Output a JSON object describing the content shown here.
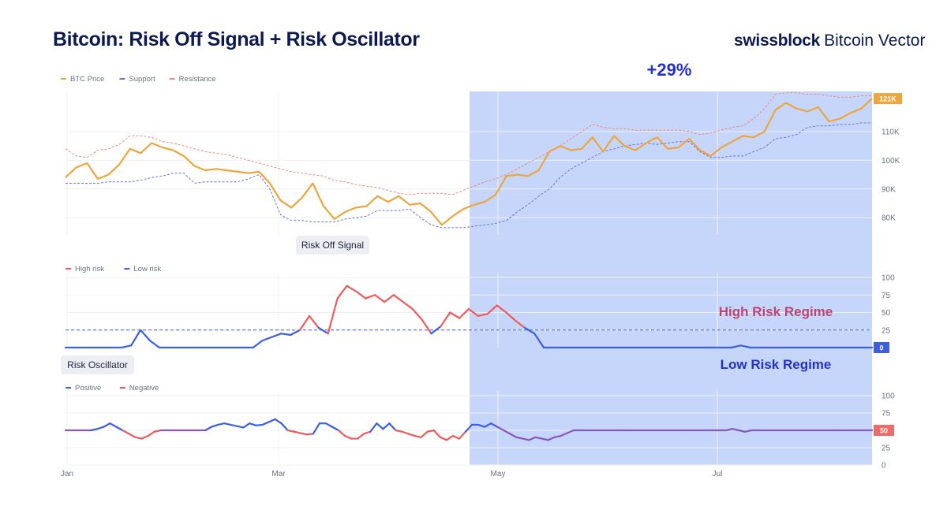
{
  "header": {
    "title": "Bitcoin: Risk Off Signal + Risk Oscillator",
    "brand_bold": "swissblock",
    "brand_light": "Bitcoin Vector"
  },
  "annotations": {
    "gain": "+29%",
    "high_regime": "High Risk Regime",
    "low_regime": "Low Risk Regime"
  },
  "colors": {
    "price": "#eda53d",
    "support": "#6b72e0",
    "resistance": "#f08a80",
    "high_risk": "#ef5a5a",
    "low_risk": "#3b5fe0",
    "highlight": "#c6d6fa",
    "title": "#0d1a4f",
    "high_regime_text": "#c0436f",
    "low_regime_text": "#2431c9"
  },
  "chart_data": [
    {
      "type": "line",
      "title": "",
      "x_axis": {
        "ticks": [
          "Jan",
          "Mar",
          "May",
          "Jul"
        ]
      },
      "y_axis": {
        "ticks": [
          "80K",
          "90K",
          "100K",
          "110K"
        ],
        "ylim": [
          74000,
          124000
        ]
      },
      "last_value_label": "121K",
      "highlight_from": "May",
      "series": [
        {
          "name": "BTC Price",
          "color": "#eda53d",
          "values": [
            94000,
            97500,
            99000,
            93500,
            95000,
            98500,
            104000,
            102500,
            106000,
            104500,
            103500,
            101500,
            98000,
            96500,
            97000,
            96500,
            96000,
            95500,
            96000,
            92000,
            86000,
            83500,
            87000,
            92000,
            84000,
            79500,
            82000,
            83500,
            84000,
            87500,
            85500,
            87500,
            84500,
            85000,
            82000,
            77500,
            80500,
            83000,
            84500,
            85500,
            88000,
            94500,
            95000,
            94500,
            96500,
            103000,
            105000,
            103500,
            104000,
            108000,
            103000,
            108500,
            105000,
            103500,
            106000,
            108000,
            104000,
            104500,
            107500,
            103500,
            101500,
            104500,
            106500,
            108500,
            108000,
            110000,
            117500,
            120000,
            118000,
            117000,
            118500,
            113500,
            114500,
            116500,
            118000,
            121500
          ]
        },
        {
          "name": "Support",
          "color": "#6b72e0",
          "values": [
            92000,
            92000,
            92000,
            92000,
            92500,
            92500,
            92500,
            93000,
            94000,
            94500,
            95500,
            95500,
            92000,
            92500,
            92500,
            92500,
            92500,
            93500,
            95000,
            90000,
            81000,
            79000,
            79000,
            78500,
            78500,
            78500,
            79500,
            80000,
            80500,
            82500,
            82500,
            82500,
            83000,
            80000,
            77500,
            76500,
            76500,
            76500,
            77000,
            77500,
            78000,
            79000,
            82000,
            84500,
            87500,
            90000,
            94000,
            97000,
            99000,
            101000,
            103000,
            104000,
            105000,
            105500,
            106000,
            105500,
            106000,
            106500,
            106500,
            103000,
            101000,
            101000,
            101500,
            101500,
            103000,
            104500,
            107500,
            108000,
            109000,
            111500,
            112000,
            112000,
            112500,
            112500,
            113000,
            113000
          ]
        },
        {
          "name": "Resistance",
          "color": "#f08a80",
          "values": [
            104000,
            101500,
            101000,
            103500,
            104000,
            105500,
            108500,
            108500,
            108000,
            106500,
            106000,
            105000,
            104000,
            103000,
            102500,
            102000,
            101000,
            100000,
            99000,
            98000,
            97000,
            96000,
            95500,
            95000,
            94500,
            93000,
            92500,
            91500,
            91000,
            90500,
            89500,
            88500,
            88000,
            88500,
            88500,
            88500,
            88000,
            89500,
            91000,
            92500,
            93500,
            95000,
            97000,
            99000,
            101000,
            103000,
            105000,
            107500,
            110000,
            112500,
            111500,
            111000,
            111000,
            110500,
            110500,
            110500,
            110500,
            110500,
            110000,
            109000,
            109500,
            110500,
            111500,
            112000,
            114500,
            118000,
            123000,
            123500,
            123500,
            123000,
            123000,
            122500,
            122000,
            122000,
            122500,
            122500
          ]
        }
      ]
    },
    {
      "type": "line",
      "title": "Risk Off Signal",
      "x_axis": {
        "ticks": [
          "Jan",
          "Mar",
          "May",
          "Jul"
        ]
      },
      "y_axis": {
        "ticks": [
          "100",
          "75",
          "50",
          "25"
        ],
        "ylim": [
          0,
          100
        ]
      },
      "threshold": 25,
      "last_value_label": "0",
      "series": [
        {
          "name": "High risk",
          "color": "#ef5a5a",
          "values": []
        },
        {
          "name": "Low risk",
          "color": "#3b5fe0",
          "values": []
        }
      ],
      "values": [
        0,
        0,
        0,
        0,
        0,
        0,
        0,
        3,
        25,
        10,
        0,
        0,
        0,
        0,
        0,
        0,
        0,
        0,
        0,
        0,
        0,
        10,
        15,
        20,
        18,
        25,
        45,
        28,
        20,
        70,
        88,
        80,
        70,
        75,
        65,
        75,
        65,
        55,
        40,
        20,
        30,
        50,
        42,
        55,
        45,
        48,
        60,
        50,
        38,
        28,
        20,
        0,
        0,
        0,
        0,
        0,
        0,
        0,
        0,
        0,
        0,
        0,
        0,
        0,
        0,
        0,
        0,
        0,
        0,
        0,
        0,
        0,
        3,
        0,
        0,
        0,
        0,
        0,
        0,
        0,
        0,
        0,
        0,
        0,
        0,
        0,
        0
      ]
    },
    {
      "type": "line",
      "title": "Risk Oscillator",
      "x_axis": {
        "ticks": [
          "Jan",
          "Mar",
          "May",
          "Jul"
        ]
      },
      "y_axis": {
        "ticks": [
          "100",
          "75",
          "50",
          "25",
          "0"
        ],
        "ylim": [
          0,
          100
        ]
      },
      "midline": 50,
      "last_value_label": "50",
      "series": [
        {
          "name": "Positive",
          "color": "#3b5fe0",
          "values": []
        },
        {
          "name": "Negative",
          "color": "#ef5a5a",
          "values": []
        }
      ],
      "values": [
        50,
        50,
        50,
        50,
        50,
        52,
        55,
        60,
        55,
        50,
        45,
        40,
        38,
        42,
        48,
        50,
        50,
        50,
        50,
        50,
        50,
        50,
        50,
        55,
        58,
        60,
        58,
        56,
        54,
        60,
        57,
        58,
        62,
        66,
        60,
        50,
        48,
        46,
        44,
        45,
        60,
        60,
        55,
        50,
        42,
        38,
        38,
        45,
        48,
        60,
        52,
        60,
        50,
        48,
        45,
        42,
        40,
        48,
        50,
        40,
        36,
        42,
        38,
        48,
        58,
        58,
        55,
        60,
        55,
        50,
        45,
        40,
        38,
        36,
        40,
        38,
        36,
        40,
        42,
        46,
        50,
        50,
        50,
        50,
        50,
        50,
        50,
        50,
        50,
        50,
        50,
        50,
        50,
        50,
        50,
        50,
        50,
        50,
        50,
        50,
        50,
        50,
        50,
        50,
        50,
        52,
        50,
        48,
        50,
        50,
        50,
        50,
        50,
        50,
        50,
        50,
        50,
        50,
        50,
        50,
        50,
        50,
        50,
        50,
        50,
        50,
        50,
        50
      ]
    }
  ]
}
